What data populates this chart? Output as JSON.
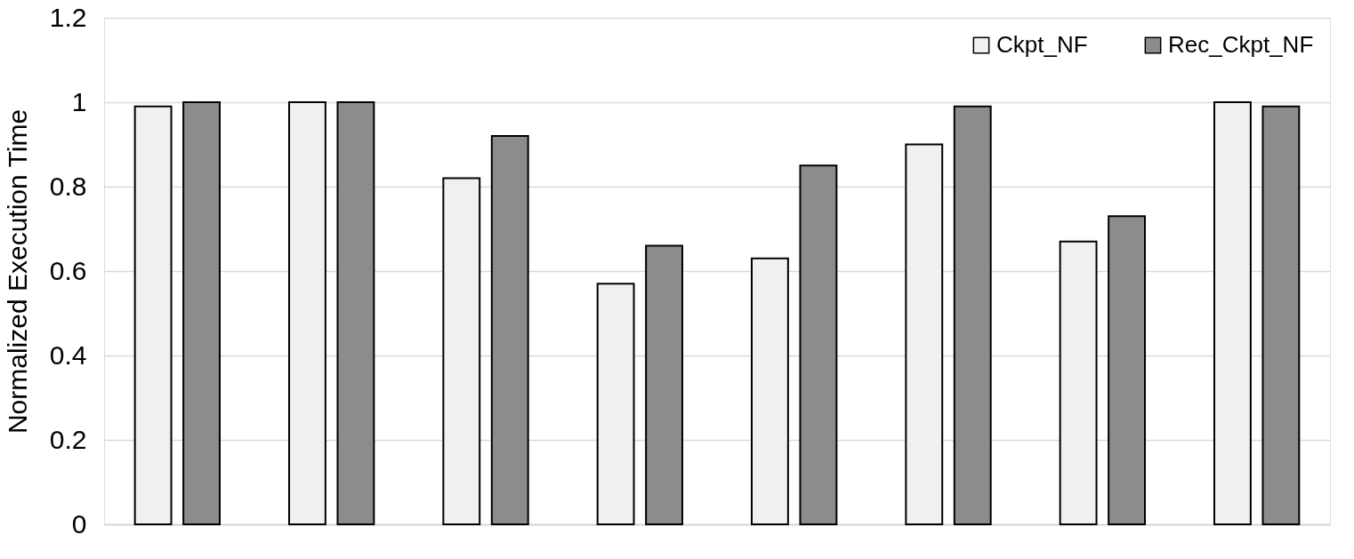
{
  "chart_data": {
    "type": "bar",
    "ylabel": "Normalized Execution Time",
    "categories": [
      null,
      null,
      null,
      null,
      null,
      null,
      null,
      null
    ],
    "series": [
      {
        "name": "Ckpt_NF",
        "color": "#f0f0f0",
        "values": [
          0.99,
          1.0,
          0.82,
          0.57,
          0.63,
          0.9,
          0.67,
          1.0
        ]
      },
      {
        "name": "Rec_Ckpt_NF",
        "color": "#8c8c8c",
        "values": [
          1.0,
          1.0,
          0.92,
          0.66,
          0.85,
          0.99,
          0.73,
          0.99
        ]
      }
    ],
    "ylim": [
      0,
      1.2
    ],
    "yticks": [
      0,
      0.2,
      0.4,
      0.6,
      0.8,
      1,
      1.2
    ],
    "grid": "y",
    "legend": "top right"
  }
}
